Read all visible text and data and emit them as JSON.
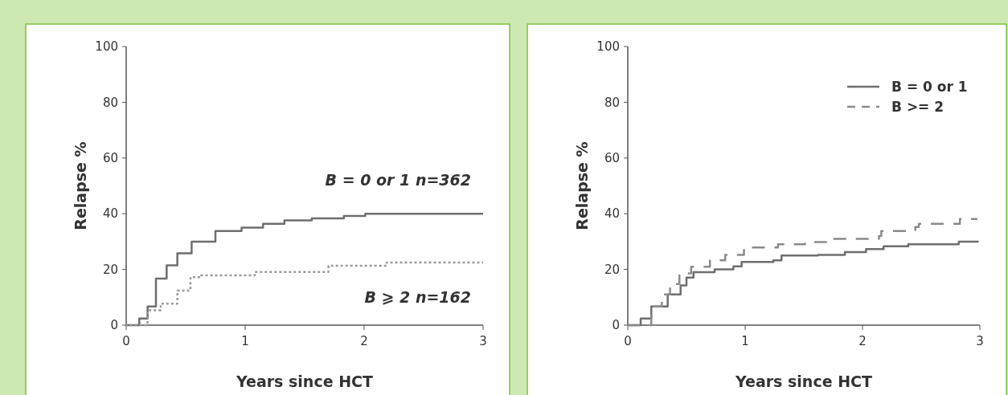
{
  "chart_data": [
    {
      "type": "step",
      "xlabel": "Years since HCT",
      "ylabel": "Relapse %",
      "xlim": [
        0,
        3
      ],
      "xticks": [
        0,
        1,
        2,
        3
      ],
      "ylim": [
        0,
        100
      ],
      "yticks": [
        0,
        20,
        40,
        60,
        80,
        100
      ],
      "legend": false,
      "grid": false,
      "series": [
        {
          "name": "B = 0 or 1 n=362",
          "color": "#6e6e6e",
          "line_style": "solid",
          "x": [
            0,
            0.11,
            0.18,
            0.25,
            0.34,
            0.43,
            0.55,
            0.75,
            0.97,
            1.15,
            1.33,
            1.56,
            1.83,
            2.01,
            3
          ],
          "values": [
            0,
            2.4,
            6.7,
            16.7,
            21.5,
            25.8,
            30,
            33.8,
            35,
            36.4,
            37.6,
            38.3,
            39.2,
            40,
            40
          ]
        },
        {
          "name": "B ⩾ 2 n=162",
          "color": "#9a9a9a",
          "line_style": "dotted",
          "x": [
            0,
            0.18,
            0.29,
            0.43,
            0.54,
            0.63,
            0.95,
            1.08,
            1.6,
            1.7,
            2.17,
            2.19,
            3
          ],
          "values": [
            0,
            5.3,
            7.7,
            12.4,
            17.2,
            17.9,
            17.9,
            19.1,
            19.1,
            21.3,
            21.3,
            22.5,
            22.5
          ]
        }
      ]
    },
    {
      "type": "step",
      "xlabel": "Years since HCT",
      "ylabel": "Relapse %",
      "xlim": [
        0,
        3
      ],
      "xticks": [
        0,
        1,
        2,
        3
      ],
      "ylim": [
        0,
        100
      ],
      "yticks": [
        0,
        20,
        40,
        60,
        80,
        100
      ],
      "legend": "top right",
      "grid": false,
      "series": [
        {
          "name": "B = 0 or 1",
          "color": "#6e6e6e",
          "line_style": "solid",
          "x": [
            0,
            0.11,
            0.2,
            0.34,
            0.45,
            0.5,
            0.56,
            0.74,
            0.9,
            0.97,
            1.24,
            1.31,
            1.62,
            1.85,
            2.03,
            2.18,
            2.39,
            2.77,
            2.82,
            2.99
          ],
          "values": [
            0,
            2.4,
            6.7,
            11,
            14.3,
            17.1,
            19,
            20,
            21.1,
            22.7,
            23.3,
            25,
            25.2,
            26.2,
            27.3,
            28.3,
            29,
            29,
            30,
            30
          ]
        },
        {
          "name": "B >= 2",
          "color": "#8a8a8a",
          "line_style": "dashed",
          "x": [
            0,
            0.2,
            0.29,
            0.36,
            0.44,
            0.54,
            0.7,
            0.83,
            0.99,
            1.28,
            1.51,
            1.69,
            2.14,
            2.16,
            2.45,
            2.48,
            2.82,
            2.83,
            2.98
          ],
          "values": [
            0,
            6.7,
            11,
            14.8,
            18.6,
            21,
            23.3,
            25.2,
            27.9,
            29,
            29.8,
            31,
            32,
            33.8,
            35.2,
            36.4,
            36.4,
            38.1,
            38.1
          ]
        }
      ]
    }
  ]
}
